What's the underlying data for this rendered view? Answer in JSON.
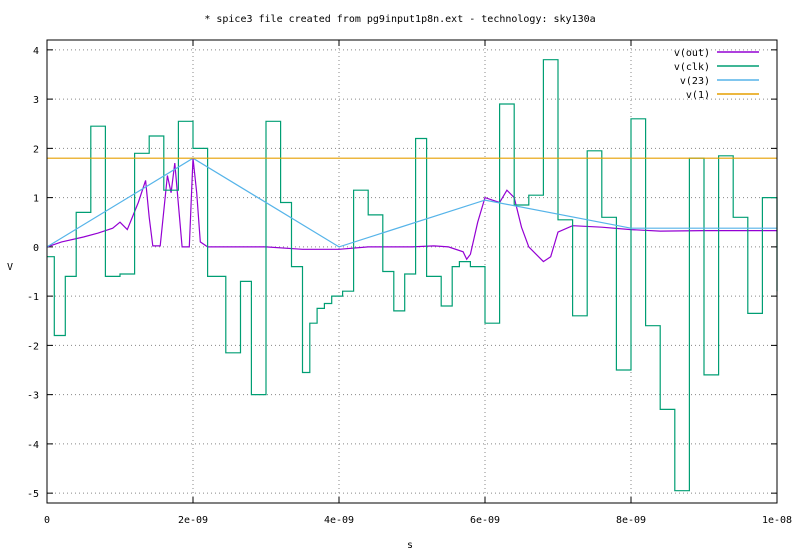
{
  "chart_data": {
    "type": "line",
    "title": "* spice3 file created from pg9input1p8n.ext - technology: sky130a",
    "xlabel": "s",
    "ylabel": "V",
    "xlim": [
      0,
      1e-08
    ],
    "ylim": [
      -5.2,
      4.2
    ],
    "grid": true,
    "legend_position": "top-right",
    "x_ticks": [
      {
        "value": 0,
        "label": "0"
      },
      {
        "value": 2e-09,
        "label": "2e-09"
      },
      {
        "value": 4e-09,
        "label": "4e-09"
      },
      {
        "value": 6e-09,
        "label": "6e-09"
      },
      {
        "value": 8e-09,
        "label": "8e-09"
      },
      {
        "value": 1e-08,
        "label": "1e-08"
      }
    ],
    "y_ticks": [
      {
        "value": -5,
        "label": "-5"
      },
      {
        "value": -4,
        "label": "-4"
      },
      {
        "value": -3,
        "label": "-3"
      },
      {
        "value": -2,
        "label": "-2"
      },
      {
        "value": -1,
        "label": "-1"
      },
      {
        "value": 0,
        "label": "0"
      },
      {
        "value": 1,
        "label": "1"
      },
      {
        "value": 2,
        "label": "2"
      },
      {
        "value": 3,
        "label": "3"
      },
      {
        "value": 4,
        "label": "4"
      }
    ],
    "series": [
      {
        "name": "v(out)",
        "color": "#9400d3",
        "x": [
          0,
          2e-10,
          5e-10,
          7e-10,
          9e-10,
          1e-09,
          1.1e-09,
          1.25e-09,
          1.35e-09,
          1.4e-09,
          1.45e-09,
          1.55e-09,
          1.65e-09,
          1.7e-09,
          1.75e-09,
          1.85e-09,
          1.95e-09,
          2e-09,
          2.05e-09,
          2.1e-09,
          2.2e-09,
          2.3e-09,
          2.5e-09,
          3e-09,
          3.5e-09,
          4e-09,
          4.4e-09,
          5e-09,
          5.3e-09,
          5.5e-09,
          5.7e-09,
          5.75e-09,
          5.8e-09,
          5.9e-09,
          6e-09,
          6.1e-09,
          6.2e-09,
          6.3e-09,
          6.4e-09,
          6.5e-09,
          6.6e-09,
          6.8e-09,
          6.9e-09,
          7e-09,
          7.2e-09,
          7.6e-09,
          8e-09,
          8.4e-09,
          9e-09,
          1e-08
        ],
        "values": [
          0,
          0.1,
          0.2,
          0.28,
          0.38,
          0.5,
          0.35,
          0.9,
          1.35,
          0.6,
          0.02,
          0.02,
          1.45,
          1.1,
          1.7,
          0.0,
          0.0,
          1.8,
          1.1,
          0.1,
          0.0,
          0.0,
          0.0,
          0.0,
          -0.05,
          -0.05,
          0.0,
          0.0,
          0.02,
          0.0,
          -0.1,
          -0.25,
          -0.15,
          0.5,
          1.0,
          0.95,
          0.9,
          1.15,
          1.0,
          0.4,
          0.0,
          -0.3,
          -0.2,
          0.3,
          0.43,
          0.4,
          0.35,
          0.32,
          0.33,
          0.33
        ]
      },
      {
        "name": "v(clk)",
        "color": "#009e73",
        "step": true,
        "x": [
          0,
          1e-10,
          2.5e-10,
          4e-10,
          6e-10,
          8e-10,
          1e-09,
          1.2e-09,
          1.4e-09,
          1.6e-09,
          1.8e-09,
          2e-09,
          2.2e-09,
          2.45e-09,
          2.65e-09,
          2.8e-09,
          3e-09,
          3.2e-09,
          3.35e-09,
          3.5e-09,
          3.6e-09,
          3.7e-09,
          3.8e-09,
          3.9e-09,
          4.05e-09,
          4.2e-09,
          4.4e-09,
          4.6e-09,
          4.75e-09,
          4.9e-09,
          5.05e-09,
          5.2e-09,
          5.4e-09,
          5.55e-09,
          5.65e-09,
          5.8e-09,
          6e-09,
          6.2e-09,
          6.4e-09,
          6.6e-09,
          6.8e-09,
          7e-09,
          7.2e-09,
          7.4e-09,
          7.6e-09,
          7.8e-09,
          8e-09,
          8.2e-09,
          8.4e-09,
          8.6e-09,
          8.8e-09,
          9e-09,
          9.2e-09,
          9.4e-09,
          9.6e-09,
          9.8e-09,
          1e-08
        ],
        "values": [
          -0.2,
          -1.8,
          -0.6,
          0.7,
          2.45,
          -0.6,
          -0.55,
          1.9,
          2.25,
          1.15,
          2.55,
          2.0,
          -0.6,
          -2.15,
          -0.7,
          -3.0,
          2.55,
          0.9,
          -0.4,
          -2.55,
          -1.55,
          -1.25,
          -1.15,
          -1.0,
          -0.9,
          1.15,
          0.65,
          -0.5,
          -1.3,
          -0.55,
          2.2,
          -0.6,
          -1.2,
          -0.4,
          -0.3,
          -0.4,
          -1.55,
          2.9,
          0.85,
          1.05,
          3.8,
          0.55,
          -1.4,
          1.95,
          0.6,
          -2.5,
          2.6,
          -1.6,
          -3.3,
          -4.95,
          1.8,
          -2.6,
          1.85,
          0.6,
          -1.35,
          1.0,
          -0.9
        ]
      },
      {
        "name": "v(23)",
        "color": "#56b4e9",
        "x": [
          0,
          2e-09,
          4e-09,
          6e-09,
          8e-09,
          1e-08
        ],
        "values": [
          0,
          1.8,
          0.0,
          0.95,
          0.38,
          0.38
        ]
      },
      {
        "name": "v(1)",
        "color": "#e69f00",
        "x": [
          0,
          1e-08
        ],
        "values": [
          1.8,
          1.8
        ]
      }
    ]
  }
}
